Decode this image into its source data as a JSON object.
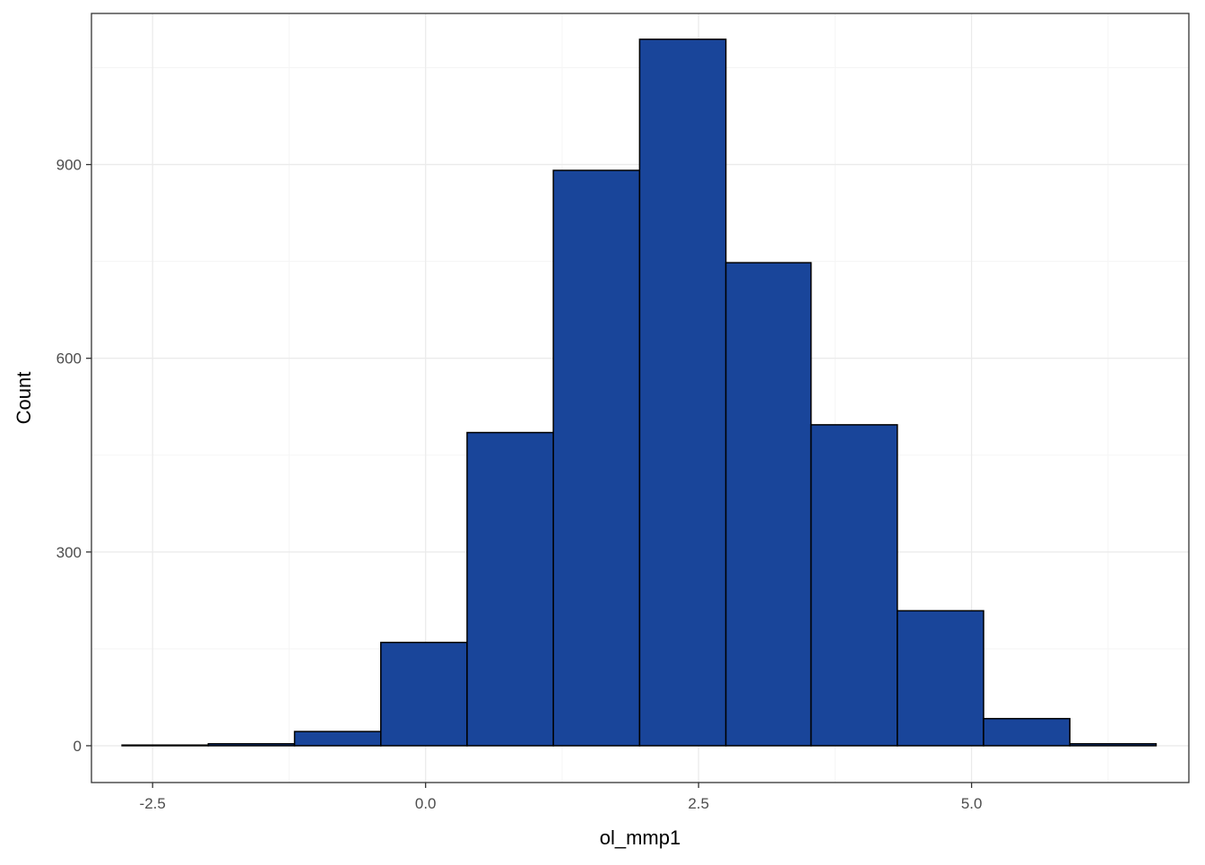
{
  "chart_data": {
    "type": "bar",
    "subtype": "histogram",
    "xlabel": "ol_mmp1",
    "ylabel": "Count",
    "xlim": [
      -3.06,
      6.99
    ],
    "ylim": [
      -57,
      1134
    ],
    "x_ticks": [
      -2.5,
      0.0,
      2.5,
      5.0
    ],
    "x_tick_labels": [
      "-2.5",
      "0.0",
      "2.5",
      "5.0"
    ],
    "y_ticks": [
      0,
      300,
      600,
      900
    ],
    "y_tick_labels": [
      "0",
      "300",
      "600",
      "900"
    ],
    "grid": true,
    "legend": "none",
    "bins": [
      {
        "x_start": -2.78,
        "x_end": -1.99,
        "count": 1
      },
      {
        "x_start": -1.99,
        "x_end": -1.2,
        "count": 3
      },
      {
        "x_start": -1.2,
        "x_end": -0.41,
        "count": 22
      },
      {
        "x_start": -0.41,
        "x_end": 0.38,
        "count": 160
      },
      {
        "x_start": 0.38,
        "x_end": 1.17,
        "count": 485
      },
      {
        "x_start": 1.17,
        "x_end": 1.96,
        "count": 891
      },
      {
        "x_start": 1.96,
        "x_end": 2.75,
        "count": 1094
      },
      {
        "x_start": 2.75,
        "x_end": 3.53,
        "count": 748
      },
      {
        "x_start": 3.53,
        "x_end": 4.32,
        "count": 497
      },
      {
        "x_start": 4.32,
        "x_end": 5.11,
        "count": 209
      },
      {
        "x_start": 5.11,
        "x_end": 5.9,
        "count": 42
      },
      {
        "x_start": 5.9,
        "x_end": 6.69,
        "count": 3
      }
    ]
  },
  "colors": {
    "bar_fill": "#19459A",
    "bar_outline": "#000000",
    "grid_major": "#EBEBEB",
    "grid_minor": "#F5F5F5",
    "panel_border": "#333333",
    "tick_text": "#4D4D4D"
  }
}
